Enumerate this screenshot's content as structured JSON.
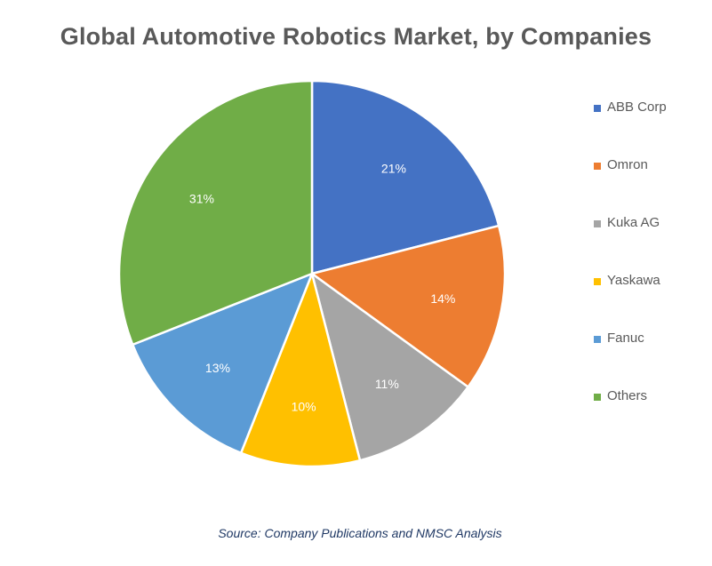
{
  "chart_data": {
    "type": "pie",
    "title": "Global Automotive Robotics Market, by Companies",
    "categories": [
      "ABB Corp",
      "Omron",
      "Kuka AG",
      "Yaskawa",
      "Fanuc",
      "Others"
    ],
    "values": [
      21,
      14,
      11,
      10,
      13,
      31
    ],
    "value_labels": [
      "21%",
      "14%",
      "11%",
      "10%",
      "13%",
      "31%"
    ],
    "colors": [
      "#4472C4",
      "#ED7D31",
      "#A5A5A5",
      "#FFC000",
      "#5B9BD5",
      "#70AD47"
    ],
    "legend_position": "right",
    "source": "Source: Company Publications and NMSC Analysis"
  }
}
